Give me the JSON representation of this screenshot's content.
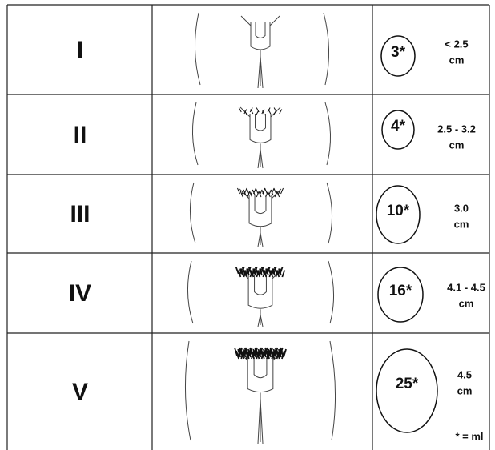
{
  "table": {
    "rows": [
      {
        "stage": "I",
        "volume": "3*",
        "size": [
          "< 2.5",
          "cm"
        ]
      },
      {
        "stage": "II",
        "volume": "4*",
        "size": [
          "2.5 - 3.2",
          "cm"
        ]
      },
      {
        "stage": "III",
        "volume": "10*",
        "size": [
          "3.0",
          "cm"
        ]
      },
      {
        "stage": "IV",
        "volume": "16*",
        "size": [
          "4.1 - 4.5",
          "cm"
        ]
      },
      {
        "stage": "V",
        "volume": "25*",
        "size": [
          "4.5",
          "cm"
        ]
      }
    ],
    "footnote": "* = ml"
  }
}
